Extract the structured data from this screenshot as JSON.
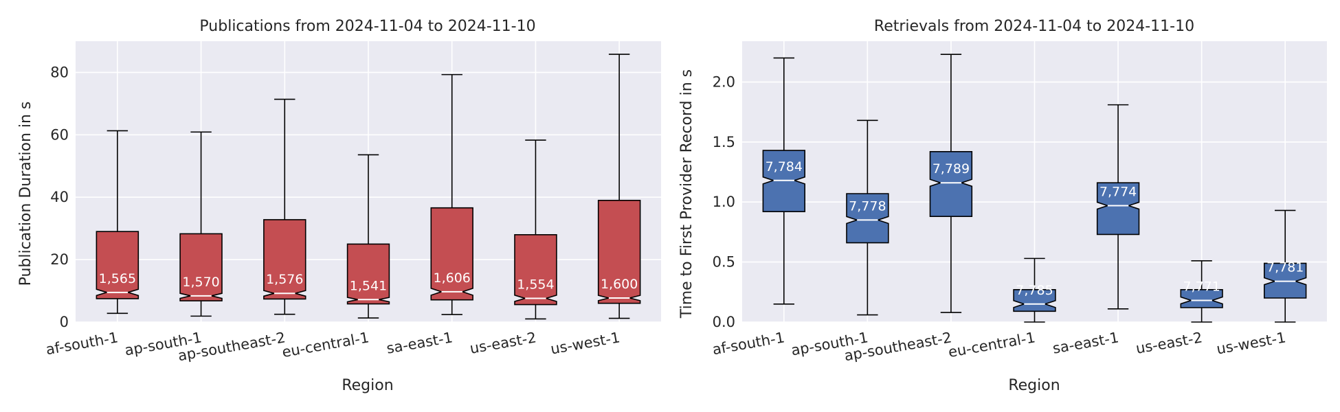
{
  "chart_data": [
    {
      "type": "box",
      "title": "Publications from 2024-11-04 to 2024-11-10",
      "xlabel": "Region",
      "ylabel": "Publication Duration in s",
      "ylim": [
        0,
        90
      ],
      "yticks": [
        0,
        20,
        40,
        60,
        80
      ],
      "grid": true,
      "notched": true,
      "box_color": "#c44e52",
      "categories": [
        "af-south-1",
        "ap-south-1",
        "ap-southeast-2",
        "eu-central-1",
        "sa-east-1",
        "us-east-2",
        "us-west-1"
      ],
      "boxes": [
        {
          "whislo": 2.8,
          "q1": 7.5,
          "med": 9.5,
          "q3": 29.0,
          "whishi": 61.3,
          "count": "1,565"
        },
        {
          "whislo": 1.9,
          "q1": 6.8,
          "med": 8.4,
          "q3": 28.3,
          "whishi": 60.9,
          "count": "1,570"
        },
        {
          "whislo": 2.5,
          "q1": 7.4,
          "med": 9.2,
          "q3": 32.8,
          "whishi": 71.4,
          "count": "1,576"
        },
        {
          "whislo": 1.3,
          "q1": 5.8,
          "med": 7.2,
          "q3": 25.0,
          "whishi": 53.6,
          "count": "1,541"
        },
        {
          "whislo": 2.4,
          "q1": 7.1,
          "med": 9.7,
          "q3": 36.6,
          "whishi": 79.3,
          "count": "1,606"
        },
        {
          "whislo": 1.0,
          "q1": 5.6,
          "med": 7.6,
          "q3": 28.0,
          "whishi": 58.3,
          "count": "1,554"
        },
        {
          "whislo": 1.2,
          "q1": 6.0,
          "med": 7.7,
          "q3": 39.0,
          "whishi": 85.8,
          "count": "1,600"
        }
      ]
    },
    {
      "type": "box",
      "title": "Retrievals from 2024-11-04 to 2024-11-10",
      "xlabel": "Region",
      "ylabel": "Time to First Provider Record in s",
      "ylim": [
        0,
        2.34
      ],
      "yticks": [
        0.0,
        0.5,
        1.0,
        1.5,
        2.0
      ],
      "ytick_labels": [
        "0.0",
        "0.5",
        "1.0",
        "1.5",
        "2.0"
      ],
      "grid": true,
      "notched": true,
      "box_color": "#4c72b0",
      "categories": [
        "af-south-1",
        "ap-south-1",
        "ap-southeast-2",
        "eu-central-1",
        "sa-east-1",
        "us-east-2",
        "us-west-1"
      ],
      "boxes": [
        {
          "whislo": 0.15,
          "q1": 0.92,
          "med": 1.18,
          "q3": 1.43,
          "whishi": 2.2,
          "count": "7,784"
        },
        {
          "whislo": 0.06,
          "q1": 0.66,
          "med": 0.85,
          "q3": 1.07,
          "whishi": 1.68,
          "count": "7,778"
        },
        {
          "whislo": 0.08,
          "q1": 0.88,
          "med": 1.16,
          "q3": 1.42,
          "whishi": 2.23,
          "count": "7,789"
        },
        {
          "whislo": 0.0,
          "q1": 0.09,
          "med": 0.15,
          "q3": 0.27,
          "whishi": 0.53,
          "count": "7,785"
        },
        {
          "whislo": 0.11,
          "q1": 0.73,
          "med": 0.97,
          "q3": 1.16,
          "whishi": 1.81,
          "count": "7,774"
        },
        {
          "whislo": 0.0,
          "q1": 0.12,
          "med": 0.18,
          "q3": 0.27,
          "whishi": 0.51,
          "count": "7,771"
        },
        {
          "whislo": 0.0,
          "q1": 0.2,
          "med": 0.34,
          "q3": 0.49,
          "whishi": 0.93,
          "count": "7,781"
        }
      ]
    }
  ]
}
